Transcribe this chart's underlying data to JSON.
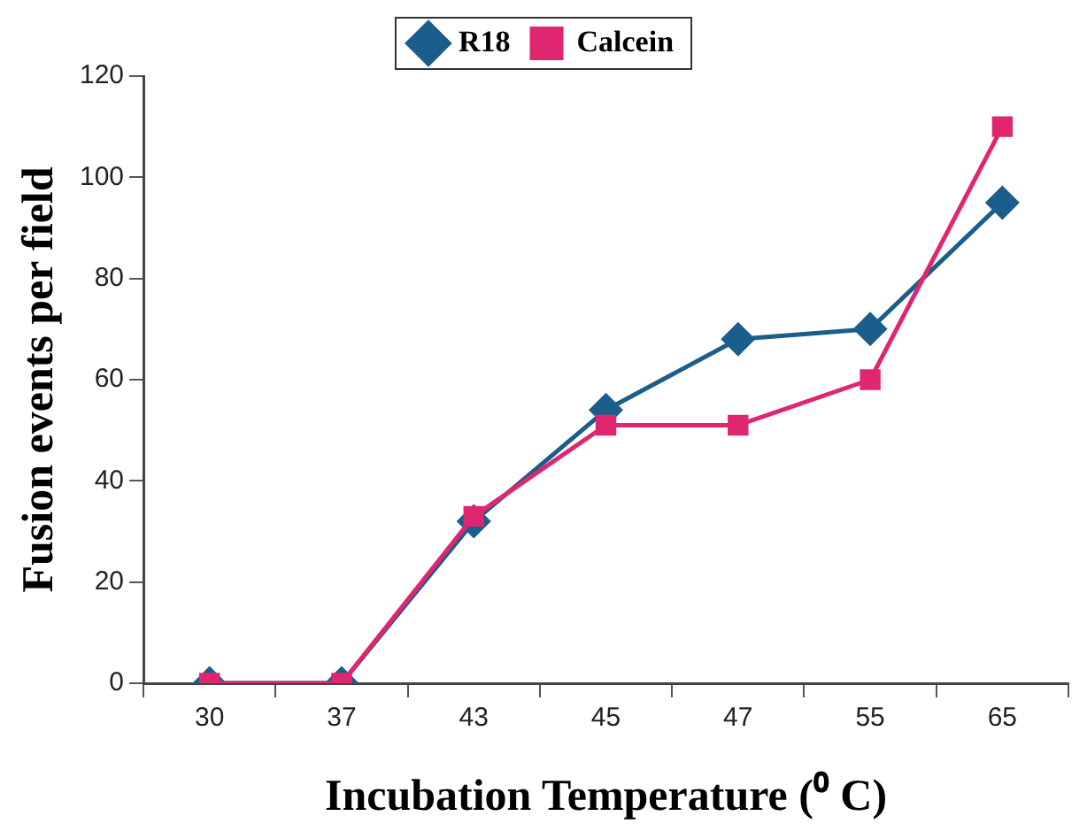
{
  "chart_data": {
    "type": "line",
    "xlabel": "Incubation Temperature (⁰ C)",
    "ylabel": "Fusion events per field",
    "categories": [
      "30",
      "37",
      "43",
      "45",
      "47",
      "55",
      "65"
    ],
    "series": [
      {
        "name": "R18",
        "color": "#1b5e8c",
        "values": [
          0,
          0,
          32,
          54,
          68,
          70,
          95
        ],
        "marker": "diamond"
      },
      {
        "name": "Calcein",
        "color": "#e0266e",
        "values": [
          0,
          0,
          33,
          51,
          51,
          60,
          110
        ],
        "marker": "square"
      }
    ],
    "ylim": [
      0,
      120
    ],
    "yticks": [
      0,
      20,
      40,
      60,
      80,
      100,
      120
    ],
    "grid": false,
    "legend": "top",
    "line_style": "solid"
  }
}
